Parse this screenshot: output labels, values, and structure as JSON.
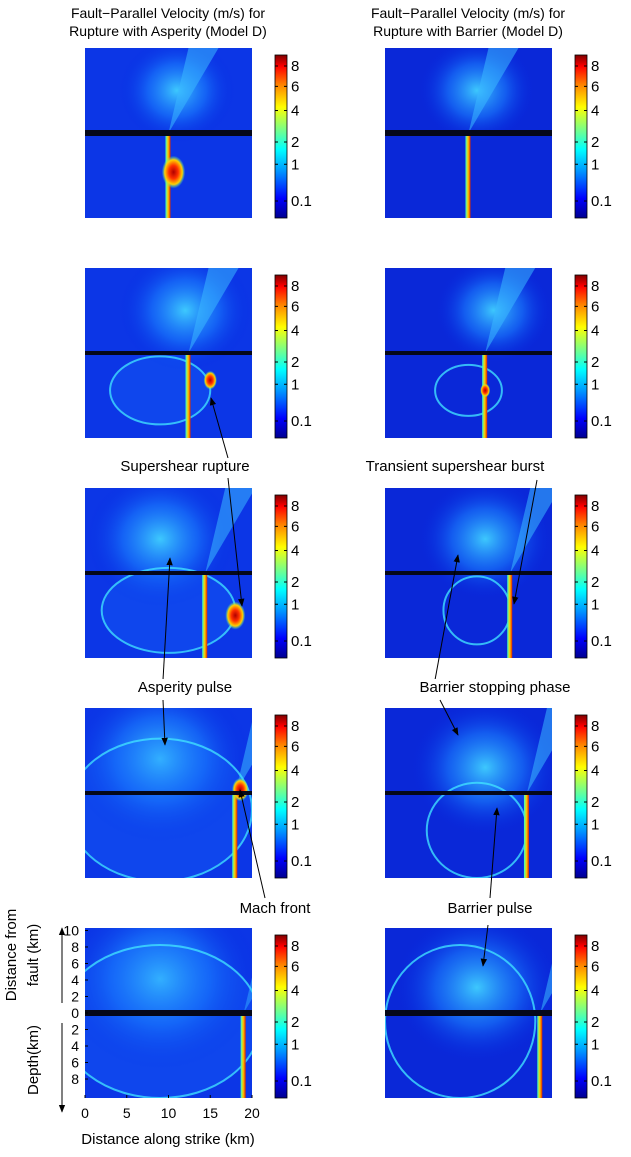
{
  "chart_data": {
    "type": "heatmap",
    "titles": [
      [
        "Fault−Parallel Velocity (m/s) for",
        "Rupture with Asperity (Model D)"
      ],
      [
        "Fault−Parallel Velocity (m/s) for",
        "Rupture with Barrier (Model D)"
      ]
    ],
    "colorbar": {
      "scale": "sqrt",
      "clim": [
        0,
        9.2
      ],
      "ticks": [
        0.1,
        1,
        2,
        4,
        6,
        8
      ]
    },
    "annotations": [
      "Supershear rupture",
      "Transient supershear burst",
      "Asperity pulse",
      "Barrier stopping phase",
      "Mach front",
      "Barrier pulse"
    ],
    "xlabel": "Distance along strike (km)",
    "ylabel_top": [
      "Distance from",
      "fault (km)"
    ],
    "ylabel_bottom": "Depth(km)",
    "xlim": [
      0,
      20
    ],
    "xticks": [
      0,
      5,
      10,
      15,
      20
    ],
    "ylim": [
      -10.3,
      10.3
    ],
    "yticks": [
      10,
      8,
      6,
      4,
      2,
      0,
      {
        "value": -2,
        "label": "2"
      },
      {
        "value": -4,
        "label": "4"
      },
      {
        "value": -6,
        "label": "6"
      },
      {
        "value": -8,
        "label": "8"
      }
    ]
  }
}
